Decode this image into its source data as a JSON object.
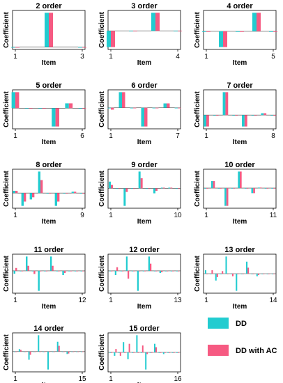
{
  "legend": [
    {
      "name": "DD",
      "color": "#22CCD0"
    },
    {
      "name": "DD with AC",
      "color": "#F65A82"
    }
  ],
  "chart_data": [
    {
      "type": "bar",
      "title": "2 order",
      "xlabel": "Item",
      "ylabel": "Coefficient",
      "x_ticks": [
        "1",
        "3"
      ],
      "n": 3,
      "series": [
        {
          "name": "DD",
          "values": [
            0.0,
            1.0,
            0.0
          ]
        },
        {
          "name": "DD with AC",
          "values": [
            0.0,
            1.0,
            0.0
          ]
        }
      ]
    },
    {
      "type": "bar",
      "title": "3 order",
      "xlabel": "Item",
      "ylabel": "Coefficient",
      "x_ticks": [
        "1",
        "4"
      ],
      "n": 4,
      "series": [
        {
          "name": "DD",
          "values": [
            -0.9,
            0.0,
            1.0,
            0.0
          ]
        },
        {
          "name": "DD with AC",
          "values": [
            -0.9,
            0.0,
            1.0,
            0.0
          ]
        }
      ]
    },
    {
      "type": "bar",
      "title": "4 order",
      "xlabel": "Item",
      "ylabel": "Coefficient",
      "x_ticks": [
        "1",
        "5"
      ],
      "n": 5,
      "series": [
        {
          "name": "DD",
          "values": [
            0.0,
            -0.85,
            0.0,
            1.0,
            0.0
          ]
        },
        {
          "name": "DD with AC",
          "values": [
            0.0,
            -0.85,
            0.0,
            1.0,
            0.0
          ]
        }
      ]
    },
    {
      "type": "bar",
      "title": "5 order",
      "xlabel": "Item",
      "ylabel": "Coefficient",
      "x_ticks": [
        "1",
        "6"
      ],
      "n": 6,
      "series": [
        {
          "name": "DD",
          "values": [
            1.0,
            0.0,
            0.0,
            -1.15,
            0.3,
            0.0
          ]
        },
        {
          "name": "DD with AC",
          "values": [
            1.0,
            0.0,
            0.0,
            -1.15,
            0.3,
            0.0
          ]
        }
      ]
    },
    {
      "type": "bar",
      "title": "6 order",
      "xlabel": "Item",
      "ylabel": "Coefficient",
      "x_ticks": [
        "1",
        "7"
      ],
      "n": 7,
      "series": [
        {
          "name": "DD",
          "values": [
            0.0,
            1.0,
            0.0,
            -1.2,
            0.0,
            0.28,
            0.0
          ]
        },
        {
          "name": "DD with AC",
          "values": [
            -0.12,
            1.0,
            0.0,
            -1.2,
            0.0,
            0.28,
            0.0
          ]
        }
      ]
    },
    {
      "type": "bar",
      "title": "7 order",
      "xlabel": "Item",
      "ylabel": "Coefficient",
      "x_ticks": [
        "1",
        "8"
      ],
      "n": 8,
      "series": [
        {
          "name": "DD",
          "values": [
            -0.5,
            0.0,
            1.0,
            0.0,
            -0.5,
            0.0,
            0.08,
            0.0
          ]
        },
        {
          "name": "DD with AC",
          "values": [
            -0.5,
            0.0,
            1.0,
            0.0,
            -0.5,
            0.0,
            0.08,
            0.0
          ]
        }
      ]
    },
    {
      "type": "bar",
      "title": "8 order",
      "xlabel": "Item",
      "ylabel": "Coefficient",
      "x_ticks": [
        "1",
        "9"
      ],
      "n": 9,
      "series": [
        {
          "name": "DD",
          "values": [
            0.1,
            -0.6,
            -0.3,
            1.0,
            0.0,
            -0.6,
            0.0,
            0.06,
            0.0
          ]
        },
        {
          "name": "DD with AC",
          "values": [
            0.1,
            -0.4,
            -0.2,
            0.6,
            0.0,
            -0.4,
            0.0,
            0.06,
            0.0
          ]
        }
      ]
    },
    {
      "type": "bar",
      "title": "9 order",
      "xlabel": "Item",
      "ylabel": "Coefficient",
      "x_ticks": [
        "1",
        "10"
      ],
      "n": 10,
      "series": [
        {
          "name": "DD",
          "values": [
            0.4,
            0.0,
            -1.05,
            0.0,
            1.0,
            0.0,
            -0.3,
            0.04,
            0.04,
            0.0
          ]
        },
        {
          "name": "DD with AC",
          "values": [
            0.2,
            0.0,
            -0.22,
            0.0,
            0.6,
            0.0,
            -0.15,
            0.04,
            0.04,
            0.0
          ]
        }
      ]
    },
    {
      "type": "bar",
      "title": "10 order",
      "xlabel": "Item",
      "ylabel": "Coefficient",
      "x_ticks": [
        "1",
        "11"
      ],
      "n": 11,
      "series": [
        {
          "name": "DD",
          "values": [
            0.0,
            0.55,
            0.0,
            -1.4,
            0.0,
            1.3,
            0.0,
            -0.4,
            0.04,
            0.0,
            0.0
          ]
        },
        {
          "name": "DD with AC",
          "values": [
            0.0,
            0.55,
            0.0,
            -1.4,
            0.0,
            1.3,
            0.0,
            -0.4,
            0.04,
            0.0,
            0.0
          ]
        }
      ]
    },
    {
      "type": "bar",
      "title": "11 order",
      "xlabel": "Item",
      "ylabel": "Coefficient",
      "x_ticks": [
        "1",
        "12"
      ],
      "n": 12,
      "series": [
        {
          "name": "DD",
          "values": [
            -0.2,
            0.0,
            1.0,
            0.0,
            -1.4,
            0.0,
            1.0,
            0.0,
            -0.3,
            0.0,
            0.0,
            0.0
          ]
        },
        {
          "name": "DD with AC",
          "values": [
            0.2,
            0.0,
            0.35,
            -0.22,
            0.0,
            0.0,
            0.35,
            0.0,
            -0.15,
            0.0,
            0.0,
            0.0
          ]
        }
      ]
    },
    {
      "type": "bar",
      "title": "12 order",
      "xlabel": "Item",
      "ylabel": "Coefficient",
      "x_ticks": [
        "1",
        "13"
      ],
      "n": 13,
      "series": [
        {
          "name": "DD",
          "values": [
            0.0,
            -0.3,
            0.0,
            1.0,
            0.0,
            -1.4,
            0.0,
            1.0,
            0.0,
            -0.15,
            0.0,
            0.0,
            0.0
          ]
        },
        {
          "name": "DD with AC",
          "values": [
            0.0,
            0.25,
            0.0,
            -0.55,
            0.0,
            0.0,
            0.0,
            0.5,
            0.0,
            -0.1,
            0.0,
            0.0,
            0.0
          ]
        }
      ]
    },
    {
      "type": "bar",
      "title": "13 order",
      "xlabel": "Item",
      "ylabel": "Coefficient",
      "x_ticks": [
        "1",
        "14"
      ],
      "n": 14,
      "series": [
        {
          "name": "DD",
          "values": [
            0.2,
            0.0,
            -0.4,
            0.0,
            1.0,
            0.0,
            -1.0,
            0.0,
            0.7,
            0.0,
            -0.15,
            0.0,
            0.0,
            0.0
          ]
        },
        {
          "name": "DD with AC",
          "values": [
            0.0,
            0.2,
            -0.2,
            0.15,
            0.0,
            -0.15,
            0.0,
            0.0,
            0.35,
            0.0,
            -0.08,
            0.0,
            0.0,
            0.0
          ]
        }
      ]
    },
    {
      "type": "bar",
      "title": "14 order",
      "xlabel": "Item",
      "ylabel": "Coefficient",
      "x_ticks": [
        "1",
        "15"
      ],
      "n": 15,
      "series": [
        {
          "name": "DD",
          "values": [
            0.0,
            0.15,
            0.0,
            -0.5,
            0.0,
            1.0,
            0.0,
            -1.1,
            0.0,
            0.6,
            0.0,
            -0.15,
            0.0,
            0.0,
            0.0
          ]
        },
        {
          "name": "DD with AC",
          "values": [
            0.0,
            0.1,
            0.0,
            -0.2,
            0.0,
            0.0,
            0.0,
            0.0,
            0.0,
            0.35,
            0.0,
            -0.12,
            0.0,
            0.0,
            0.0
          ]
        }
      ]
    },
    {
      "type": "bar",
      "title": "15 order",
      "xlabel": "Item",
      "ylabel": "Coefficient",
      "x_ticks": [
        "1",
        "16"
      ],
      "n": 16,
      "series": [
        {
          "name": "DD",
          "values": [
            0.0,
            -0.2,
            0.0,
            0.6,
            -0.4,
            0.0,
            1.0,
            0.0,
            -1.0,
            0.0,
            0.5,
            0.0,
            -0.1,
            0.0,
            0.0,
            0.0
          ]
        },
        {
          "name": "DD with AC",
          "values": [
            0.0,
            0.2,
            -0.2,
            0.0,
            0.5,
            0.0,
            0.0,
            0.4,
            -0.1,
            0.0,
            0.3,
            0.0,
            0.0,
            0.0,
            0.0,
            0.0
          ]
        }
      ]
    }
  ]
}
